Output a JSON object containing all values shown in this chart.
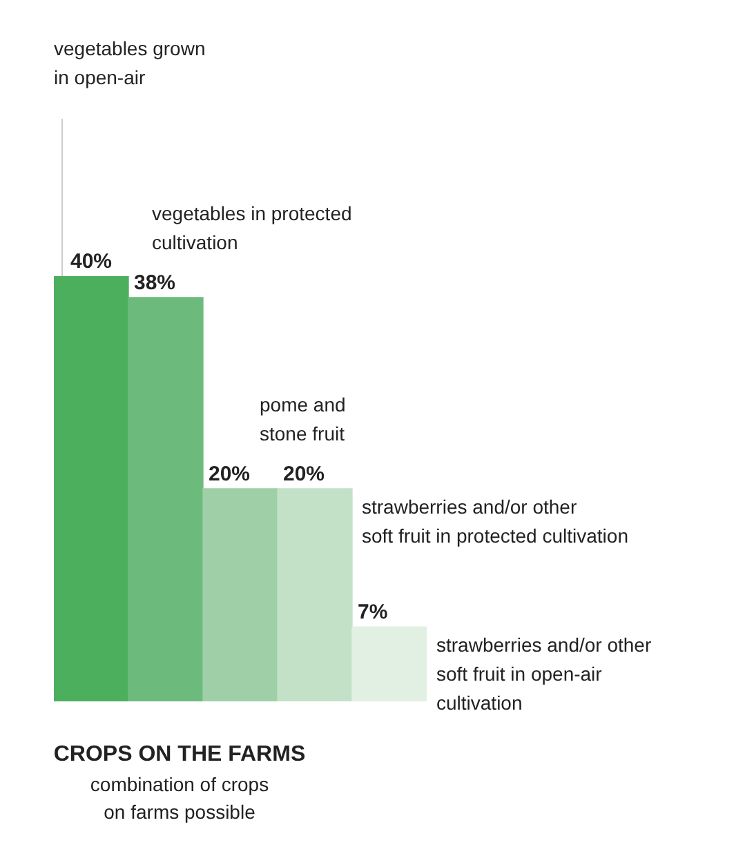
{
  "chart_data": {
    "type": "bar",
    "title": "CROPS ON THE FARMS",
    "subtitle": "combination of crops\non farms possible",
    "categories": [
      null,
      null,
      null,
      null,
      null
    ],
    "values": [
      40,
      38,
      20,
      20,
      7
    ],
    "value_labels": [
      "40%",
      "38%",
      "20%",
      "20%",
      "7%"
    ],
    "colors": [
      "#4caf5e",
      "#6dbb7c",
      "#9fcfa6",
      "#c3e1c7",
      "#e2f0e3"
    ],
    "annotations": [
      "vegetables grown\nin open-air",
      "vegetables in protected\ncultivation",
      "pome and\nstone fruit",
      "strawberries and/or other\nsoft fruit in protected cultivation",
      "strawberries and/or other\nsoft fruit in open-air\ncultivation"
    ]
  }
}
